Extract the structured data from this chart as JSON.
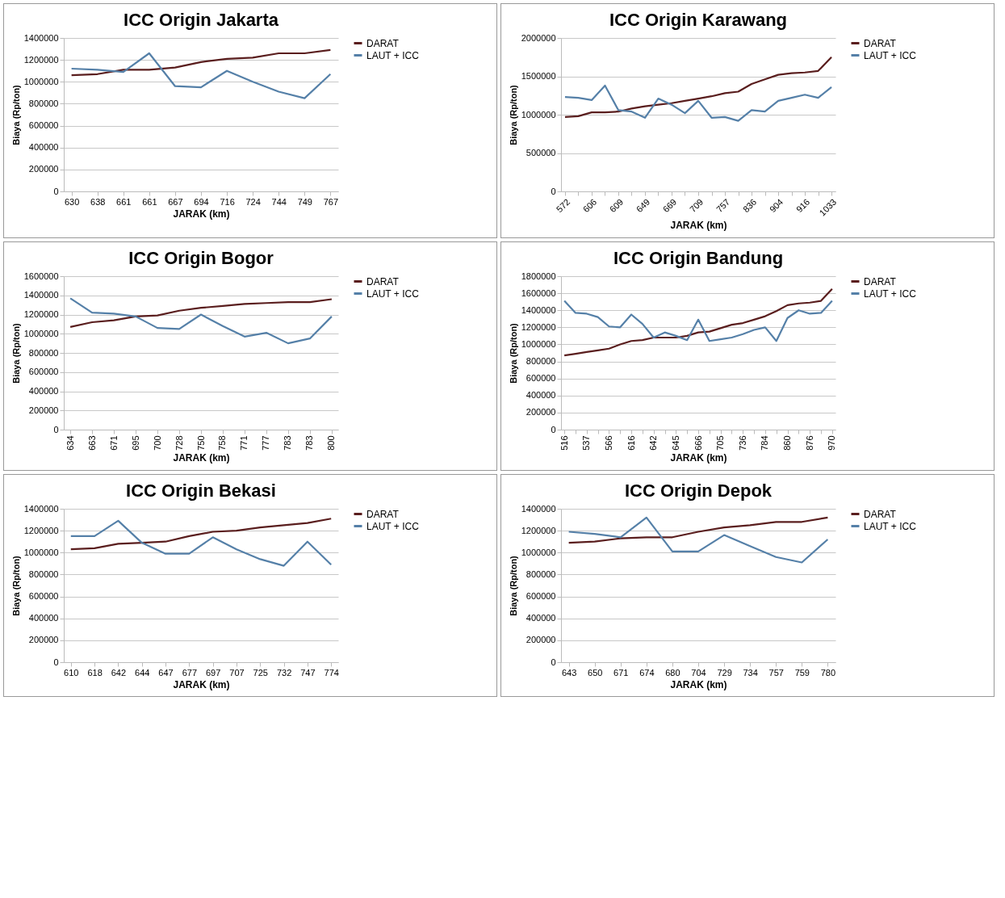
{
  "chart_data": [
    {
      "type": "line",
      "title": "ICC Origin Jakarta",
      "xlabel": "JARAK (km)",
      "ylabel": "Biaya (Rp/ton)",
      "legend": "right",
      "grid": "y",
      "ylim": [
        0,
        1400000
      ],
      "yticks": [
        0,
        200000,
        400000,
        600000,
        800000,
        1000000,
        1200000,
        1400000
      ],
      "categories": [
        "630",
        "638",
        "661",
        "661",
        "667",
        "694",
        "716",
        "724",
        "744",
        "749",
        "767"
      ],
      "series": [
        {
          "name": "DARAT",
          "color": "#5a1e1e",
          "values": [
            1060000,
            1070000,
            1110000,
            1110000,
            1130000,
            1180000,
            1210000,
            1220000,
            1260000,
            1260000,
            1290000
          ]
        },
        {
          "name": "LAUT + ICC",
          "color": "#5580a8",
          "values": [
            1120000,
            1110000,
            1090000,
            1260000,
            960000,
            950000,
            1100000,
            1000000,
            910000,
            850000,
            1070000
          ]
        }
      ]
    },
    {
      "type": "line",
      "title": "ICC Origin Karawang",
      "xlabel": "JARAK (km)",
      "ylabel": "Biaya (Rp/ton)",
      "legend": "right",
      "grid": "y",
      "ylim": [
        0,
        2000000
      ],
      "yticks": [
        0,
        500000,
        1000000,
        1500000,
        2000000
      ],
      "categories": [
        "572",
        null,
        "606",
        null,
        "609",
        null,
        "649",
        null,
        "669",
        null,
        "709",
        null,
        "757",
        null,
        "836",
        null,
        "904",
        null,
        "916",
        null,
        "1033"
      ],
      "series": [
        {
          "name": "DARAT",
          "color": "#5a1e1e",
          "values": [
            970000,
            980000,
            1030000,
            1030000,
            1040000,
            1080000,
            1110000,
            1130000,
            1150000,
            1180000,
            1210000,
            1240000,
            1280000,
            1300000,
            1400000,
            1460000,
            1520000,
            1540000,
            1550000,
            1570000,
            1750000
          ]
        },
        {
          "name": "LAUT + ICC",
          "color": "#5580a8",
          "values": [
            1230000,
            1220000,
            1190000,
            1380000,
            1060000,
            1040000,
            960000,
            1210000,
            1130000,
            1020000,
            1180000,
            960000,
            970000,
            920000,
            1060000,
            1040000,
            1180000,
            1220000,
            1260000,
            1220000,
            1360000
          ]
        }
      ]
    },
    {
      "type": "line",
      "title": "ICC Origin Bogor",
      "xlabel": "JARAK (km)",
      "ylabel": "Biaya (Rp/ton)",
      "legend": "right",
      "grid": "y",
      "ylim": [
        0,
        1600000
      ],
      "yticks": [
        0,
        200000,
        400000,
        600000,
        800000,
        1000000,
        1200000,
        1400000,
        1600000
      ],
      "categories": [
        "634",
        "663",
        "671",
        "695",
        "700",
        "728",
        "750",
        "758",
        "771",
        "777",
        "783",
        "783",
        "800"
      ],
      "series": [
        {
          "name": "DARAT",
          "color": "#5a1e1e",
          "values": [
            1070000,
            1120000,
            1140000,
            1180000,
            1190000,
            1240000,
            1270000,
            1290000,
            1310000,
            1320000,
            1330000,
            1330000,
            1360000
          ]
        },
        {
          "name": "LAUT + ICC",
          "color": "#5580a8",
          "values": [
            1370000,
            1220000,
            1210000,
            1180000,
            1060000,
            1050000,
            1200000,
            1080000,
            970000,
            1010000,
            900000,
            950000,
            1180000
          ]
        }
      ]
    },
    {
      "type": "line",
      "title": "ICC Origin Bandung",
      "xlabel": "JARAK (km)",
      "ylabel": "Biaya (Rp/ton)",
      "legend": "right",
      "grid": "y",
      "ylim": [
        0,
        1800000
      ],
      "yticks": [
        0,
        200000,
        400000,
        600000,
        800000,
        1000000,
        1200000,
        1400000,
        1600000,
        1800000
      ],
      "categories": [
        "516",
        null,
        "537",
        null,
        "566",
        null,
        "616",
        null,
        "642",
        null,
        "645",
        null,
        "666",
        null,
        "705",
        null,
        "736",
        null,
        "784",
        null,
        "860",
        null,
        "876",
        null,
        "970"
      ],
      "series": [
        {
          "name": "DARAT",
          "color": "#5a1e1e",
          "values": [
            870000,
            890000,
            910000,
            930000,
            950000,
            1000000,
            1040000,
            1050000,
            1080000,
            1080000,
            1080000,
            1100000,
            1140000,
            1150000,
            1190000,
            1230000,
            1250000,
            1290000,
            1330000,
            1390000,
            1460000,
            1480000,
            1490000,
            1510000,
            1650000
          ]
        },
        {
          "name": "LAUT + ICC",
          "color": "#5580a8",
          "values": [
            1510000,
            1370000,
            1360000,
            1320000,
            1210000,
            1200000,
            1350000,
            1240000,
            1080000,
            1140000,
            1100000,
            1050000,
            1290000,
            1040000,
            1060000,
            1080000,
            1120000,
            1170000,
            1200000,
            1040000,
            1310000,
            1400000,
            1360000,
            1370000,
            1510000
          ]
        }
      ]
    },
    {
      "type": "line",
      "title": "ICC Origin Bekasi",
      "xlabel": "JARAK (km)",
      "ylabel": "Biaya (Rp/ton)",
      "legend": "right",
      "grid": "y",
      "ylim": [
        0,
        1400000
      ],
      "yticks": [
        0,
        200000,
        400000,
        600000,
        800000,
        1000000,
        1200000,
        1400000
      ],
      "categories": [
        "610",
        "618",
        "642",
        "644",
        "647",
        "677",
        "697",
        "707",
        "725",
        "732",
        "747",
        "774"
      ],
      "series": [
        {
          "name": "DARAT",
          "color": "#5a1e1e",
          "values": [
            1030000,
            1040000,
            1080000,
            1090000,
            1100000,
            1150000,
            1190000,
            1200000,
            1230000,
            1250000,
            1270000,
            1310000
          ]
        },
        {
          "name": "LAUT + ICC",
          "color": "#5580a8",
          "values": [
            1150000,
            1150000,
            1290000,
            1090000,
            990000,
            990000,
            1140000,
            1030000,
            940000,
            880000,
            1100000,
            890000
          ]
        }
      ]
    },
    {
      "type": "line",
      "title": "ICC Origin Depok",
      "xlabel": "JARAK (km)",
      "ylabel": "Biaya (Rp/ton)",
      "legend": "right",
      "grid": "y",
      "ylim": [
        0,
        1400000
      ],
      "yticks": [
        0,
        200000,
        400000,
        600000,
        800000,
        1000000,
        1200000,
        1400000
      ],
      "categories": [
        "643",
        "650",
        "671",
        "674",
        "680",
        "704",
        "729",
        "734",
        "757",
        "759",
        "780"
      ],
      "series": [
        {
          "name": "DARAT",
          "color": "#5a1e1e",
          "values": [
            1090000,
            1100000,
            1130000,
            1140000,
            1140000,
            1190000,
            1230000,
            1250000,
            1280000,
            1280000,
            1320000
          ]
        },
        {
          "name": "LAUT + ICC",
          "color": "#5580a8",
          "values": [
            1190000,
            1170000,
            1140000,
            1320000,
            1010000,
            1010000,
            1160000,
            1060000,
            960000,
            910000,
            1120000
          ]
        }
      ]
    }
  ]
}
